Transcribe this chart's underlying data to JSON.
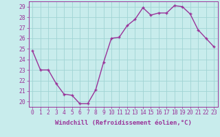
{
  "x": [
    0,
    1,
    2,
    3,
    4,
    5,
    6,
    7,
    8,
    9,
    10,
    11,
    12,
    13,
    14,
    15,
    16,
    17,
    18,
    19,
    20,
    21,
    22,
    23
  ],
  "y": [
    24.8,
    23.0,
    23.0,
    21.7,
    20.7,
    20.6,
    19.8,
    19.8,
    21.1,
    23.7,
    26.0,
    26.1,
    27.2,
    27.8,
    28.9,
    28.2,
    28.4,
    28.4,
    29.1,
    29.0,
    28.3,
    26.8,
    26.0,
    25.2
  ],
  "line_color": "#993399",
  "marker": "+",
  "bg_color": "#c8ecec",
  "grid_color": "#a0d4d4",
  "ylabel_ticks": [
    20,
    21,
    22,
    23,
    24,
    25,
    26,
    27,
    28,
    29
  ],
  "xlabel": "Windchill (Refroidissement éolien,°C)",
  "ylim": [
    19.5,
    29.5
  ],
  "xlim": [
    -0.5,
    23.5
  ],
  "tick_color": "#993399",
  "label_color": "#993399",
  "font_size_xlabel": 6.5,
  "font_size_tick": 5.8,
  "line_width": 1.0,
  "marker_size": 3.5,
  "marker_edge_width": 1.0
}
